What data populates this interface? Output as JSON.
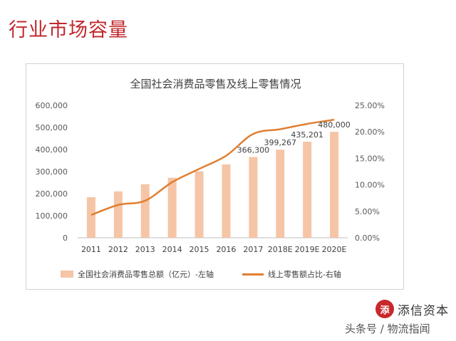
{
  "page": {
    "title": "行业市场容量"
  },
  "chart_data": {
    "type": "bar",
    "title": "全国社会消费品零售及线上零售情况",
    "categories": [
      "2011",
      "2012",
      "2013",
      "2014",
      "2015",
      "2016",
      "2017",
      "2018E",
      "2019E",
      "2020E"
    ],
    "series": [
      {
        "name": "全国社会消费品零售总额（亿元）-左轴",
        "type": "bar",
        "axis": "left",
        "color": "#f5c5a6",
        "values": [
          183919,
          210307,
          242843,
          271896,
          300931,
          332316,
          366300,
          399267,
          435201,
          480000
        ]
      },
      {
        "name": "线上零售额占比-右轴",
        "type": "line",
        "axis": "right",
        "color": "#e07f32",
        "values": [
          4.3,
          6.2,
          7.0,
          10.5,
          13.0,
          15.5,
          19.6,
          20.5,
          21.5,
          22.3
        ]
      }
    ],
    "data_labels": [
      {
        "index": 6,
        "text": "366,300"
      },
      {
        "index": 7,
        "text": "399,267"
      },
      {
        "index": 8,
        "text": "435,201"
      },
      {
        "index": 9,
        "text": "480,000"
      }
    ],
    "y_left": {
      "range": [
        0,
        600000
      ],
      "ticks": [
        {
          "value": 0,
          "label": "0"
        },
        {
          "value": 100000,
          "label": "100,000"
        },
        {
          "value": 200000,
          "label": "200,000"
        },
        {
          "value": 300000,
          "label": "300,000"
        },
        {
          "value": 400000,
          "label": "400,000"
        },
        {
          "value": 500000,
          "label": "500,000"
        },
        {
          "value": 600000,
          "label": "600,000"
        }
      ]
    },
    "y_right": {
      "range": [
        0,
        25
      ],
      "ticks": [
        {
          "value": 0,
          "label": "0.00%"
        },
        {
          "value": 5,
          "label": "5.00%"
        },
        {
          "value": 10,
          "label": "10.00%"
        },
        {
          "value": 15,
          "label": "15.00%"
        },
        {
          "value": 20,
          "label": "20.00%"
        },
        {
          "value": 25,
          "label": "25.00%"
        }
      ]
    },
    "grid": false,
    "legend_position": "bottom"
  },
  "legend": {
    "bar_label": "全国社会消费品零售总额（亿元）-左轴",
    "line_label": "线上零售额占比-右轴"
  },
  "brand": {
    "logo_text": "添",
    "name": "添信资本"
  },
  "watermark": {
    "text": "头条号 / 物流指闻"
  }
}
